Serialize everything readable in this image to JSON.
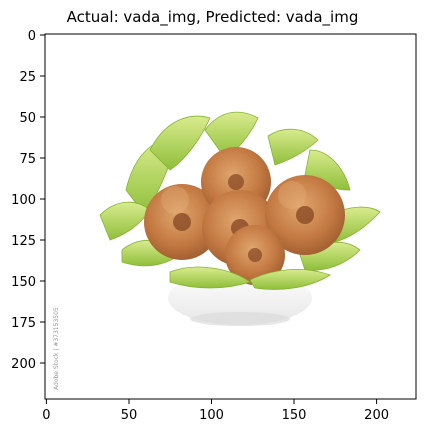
{
  "title": "Actual: vada_img, Predicted: vada_img",
  "axes": {
    "x_ticks": [
      "0",
      "50",
      "100",
      "150",
      "200"
    ],
    "y_ticks": [
      "0",
      "25",
      "50",
      "75",
      "100",
      "125",
      "150",
      "175",
      "200"
    ],
    "x_range": [
      0,
      224
    ],
    "y_range": [
      0,
      224
    ]
  },
  "image": {
    "subject": "bowl of fried vadas on green leaves",
    "watermark": "Adobe Stock | #373153505"
  },
  "colors": {
    "vada_dark": "#b5683a",
    "vada_light": "#d89a62",
    "leaf_green": "#a9cf47",
    "leaf_light": "#d7ea8b",
    "bowl": "#f1f1f1"
  }
}
